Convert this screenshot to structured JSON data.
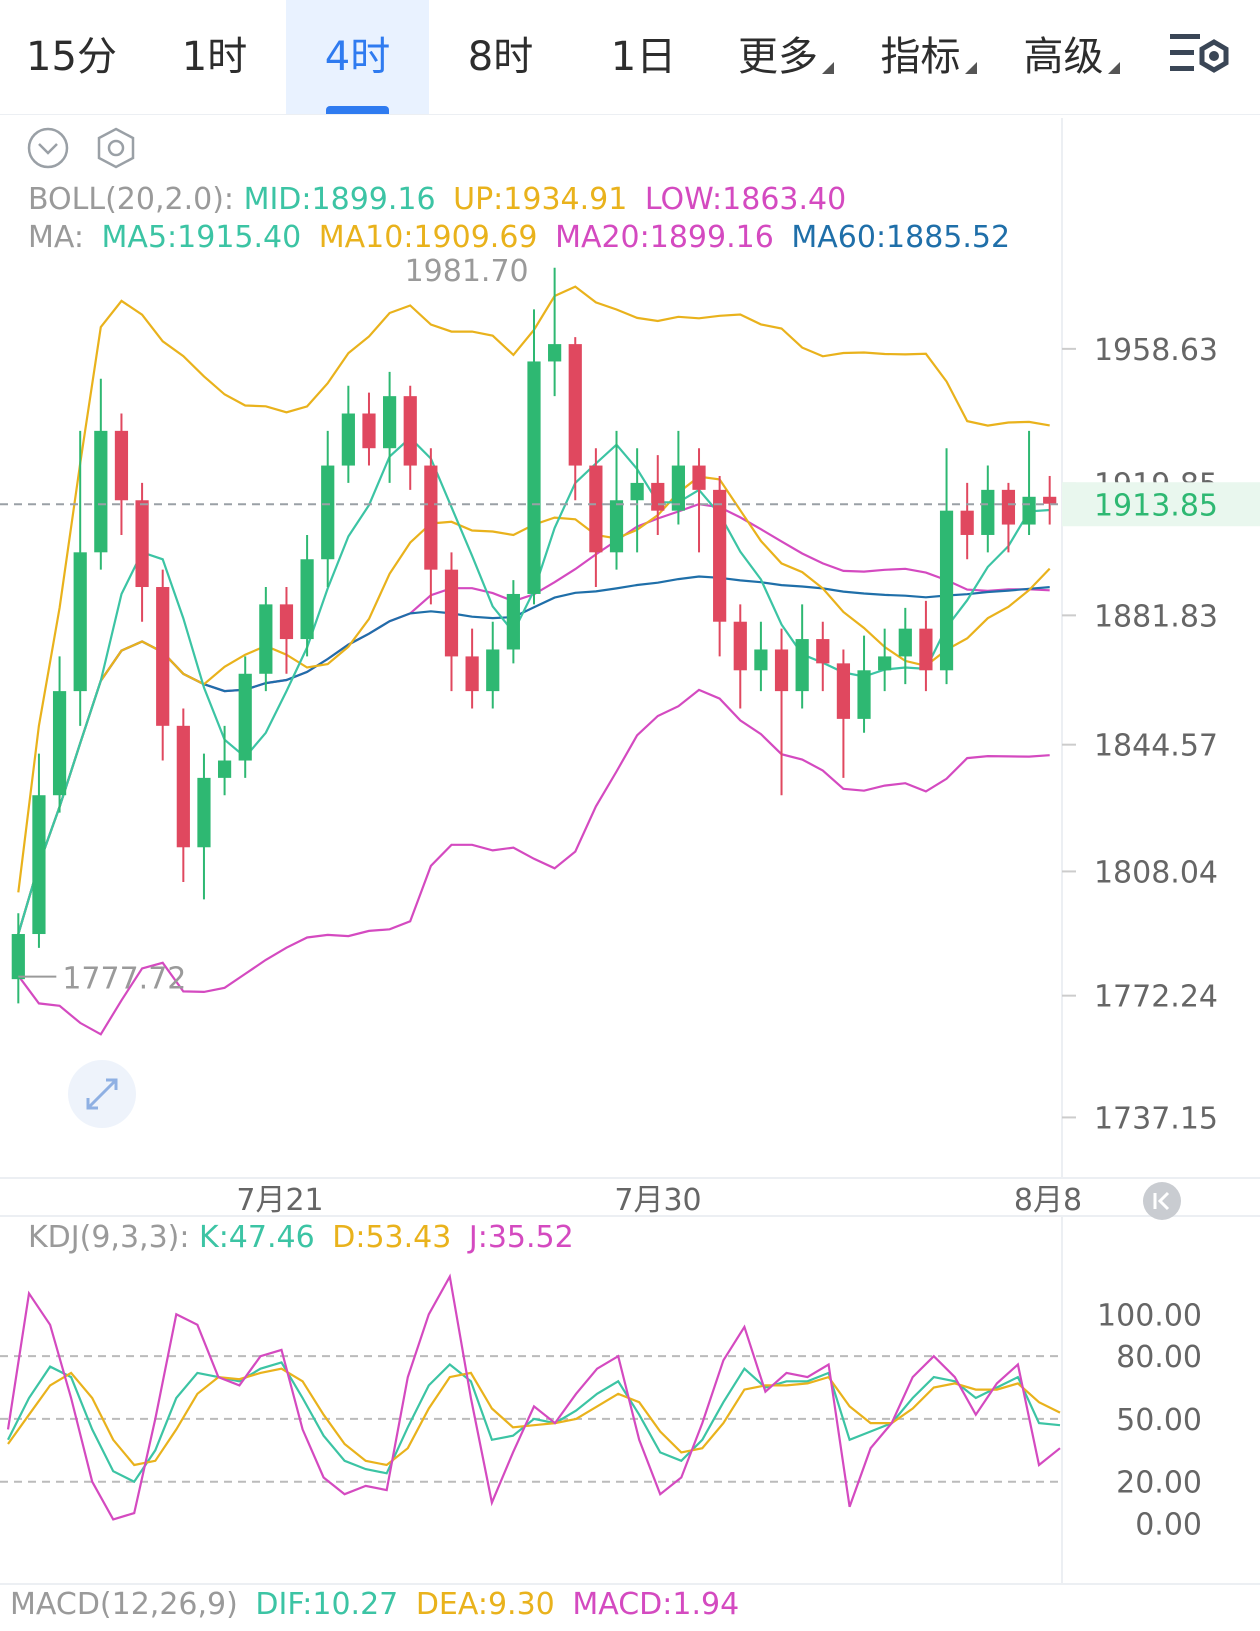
{
  "tabs": [
    {
      "label": "15分",
      "active": false,
      "dropdown": false
    },
    {
      "label": "1时",
      "active": false,
      "dropdown": false
    },
    {
      "label": "4时",
      "active": true,
      "dropdown": false
    },
    {
      "label": "8时",
      "active": false,
      "dropdown": false
    },
    {
      "label": "1日",
      "active": false,
      "dropdown": false
    },
    {
      "label": "更多",
      "active": false,
      "dropdown": true
    },
    {
      "label": "指标",
      "active": false,
      "dropdown": true
    },
    {
      "label": "高级",
      "active": false,
      "dropdown": true
    }
  ],
  "colors": {
    "mid": "#3cc4a4",
    "up": "#e9b21c",
    "low": "#d44ac0",
    "ma60": "#1f6fa9",
    "bull": "#2eb872",
    "bear": "#e0485f",
    "accent": "#2f7bf0"
  },
  "boll": {
    "label": "BOLL(20,2.0):",
    "mid": "MID:1899.16",
    "up": "UP:1934.91",
    "low": "LOW:1863.40"
  },
  "ma": {
    "label": "MA:",
    "ma5": "MA5:1915.40",
    "ma10": "MA10:1909.69",
    "ma20": "MA20:1899.16",
    "ma60": "MA60:1885.52"
  },
  "kdj": {
    "label": "KDJ(9,3,3):",
    "k": "K:47.46",
    "d": "D:53.43",
    "j": "J:35.52"
  },
  "macd": {
    "label": "MACD(12,26,9)",
    "dif": "DIF:10.27",
    "dea": "DEA:9.30",
    "macd": "MACD:1.94"
  },
  "chart_data": [
    {
      "type": "candlestick",
      "price_ticks": [
        "1958.63",
        "1919.85",
        "1881.83",
        "1844.57",
        "1808.04",
        "1772.24",
        "1737.15"
      ],
      "current_price": "1913.85",
      "max_label": "1981.70",
      "min_label": "1777.72",
      "date_labels": [
        "7月21",
        "7月30",
        "8月8"
      ],
      "ylim": [
        1722,
        1990
      ],
      "candles": [
        [
          1777,
          1790,
          1770,
          1796
        ],
        [
          1790,
          1830,
          1786,
          1842
        ],
        [
          1830,
          1860,
          1825,
          1870
        ],
        [
          1860,
          1900,
          1850,
          1935
        ],
        [
          1900,
          1935,
          1895,
          1950
        ],
        [
          1935,
          1915,
          1905,
          1940
        ],
        [
          1915,
          1890,
          1880,
          1920
        ],
        [
          1890,
          1850,
          1840,
          1895
        ],
        [
          1850,
          1815,
          1805,
          1855
        ],
        [
          1815,
          1835,
          1800,
          1842
        ],
        [
          1835,
          1840,
          1830,
          1850
        ],
        [
          1840,
          1865,
          1835,
          1870
        ],
        [
          1865,
          1885,
          1860,
          1890
        ],
        [
          1885,
          1875,
          1865,
          1890
        ],
        [
          1875,
          1898,
          1870,
          1905
        ],
        [
          1898,
          1925,
          1890,
          1935
        ],
        [
          1925,
          1940,
          1920,
          1948
        ],
        [
          1940,
          1930,
          1925,
          1946
        ],
        [
          1930,
          1945,
          1920,
          1952
        ],
        [
          1945,
          1925,
          1918,
          1948
        ],
        [
          1925,
          1895,
          1885,
          1930
        ],
        [
          1895,
          1870,
          1860,
          1900
        ],
        [
          1870,
          1860,
          1855,
          1878
        ],
        [
          1860,
          1872,
          1855,
          1880
        ],
        [
          1872,
          1888,
          1868,
          1892
        ],
        [
          1888,
          1955,
          1885,
          1970
        ],
        [
          1955,
          1960,
          1945,
          1982
        ],
        [
          1960,
          1925,
          1915,
          1962
        ],
        [
          1925,
          1900,
          1890,
          1930
        ],
        [
          1900,
          1915,
          1895,
          1935
        ],
        [
          1915,
          1920,
          1900,
          1930
        ],
        [
          1920,
          1912,
          1905,
          1928
        ],
        [
          1912,
          1925,
          1908,
          1935
        ],
        [
          1925,
          1918,
          1900,
          1930
        ],
        [
          1918,
          1880,
          1870,
          1922
        ],
        [
          1880,
          1866,
          1855,
          1885
        ],
        [
          1866,
          1872,
          1860,
          1880
        ],
        [
          1872,
          1860,
          1830,
          1878
        ],
        [
          1860,
          1875,
          1855,
          1885
        ],
        [
          1875,
          1868,
          1860,
          1880
        ],
        [
          1868,
          1852,
          1835,
          1872
        ],
        [
          1852,
          1866,
          1848,
          1876
        ],
        [
          1866,
          1870,
          1860,
          1878
        ],
        [
          1870,
          1878,
          1862,
          1884
        ],
        [
          1878,
          1866,
          1860,
          1886
        ],
        [
          1866,
          1912,
          1862,
          1930
        ],
        [
          1912,
          1905,
          1898,
          1920
        ],
        [
          1905,
          1918,
          1900,
          1925
        ],
        [
          1918,
          1908,
          1900,
          1920
        ],
        [
          1908,
          1916,
          1905,
          1935
        ],
        [
          1916,
          1914,
          1908,
          1922
        ]
      ]
    },
    {
      "type": "line",
      "title": "KDJ(9,3,3)",
      "yticks": [
        "100.00",
        "80.00",
        "50.00",
        "20.00",
        "0.00"
      ],
      "ylim": [
        -5,
        125
      ],
      "series": [
        {
          "name": "K",
          "values": [
            40,
            60,
            75,
            70,
            45,
            25,
            20,
            35,
            60,
            72,
            70,
            68,
            74,
            77,
            60,
            42,
            30,
            26,
            24,
            46,
            66,
            76,
            68,
            40,
            42,
            50,
            48,
            54,
            62,
            68,
            52,
            34,
            30,
            40,
            58,
            74,
            65,
            68,
            68,
            72,
            40,
            44,
            48,
            60,
            70,
            68,
            60,
            65,
            70,
            48,
            47
          ]
        },
        {
          "name": "D",
          "values": [
            38,
            52,
            66,
            72,
            60,
            40,
            28,
            30,
            45,
            62,
            70,
            69,
            72,
            74,
            68,
            52,
            38,
            30,
            28,
            36,
            55,
            70,
            72,
            55,
            46,
            47,
            48,
            50,
            56,
            62,
            58,
            44,
            34,
            36,
            48,
            64,
            66,
            66,
            67,
            70,
            56,
            48,
            48,
            55,
            65,
            67,
            64,
            64,
            67,
            58,
            53
          ]
        },
        {
          "name": "J",
          "values": [
            45,
            110,
            95,
            60,
            20,
            2,
            5,
            50,
            100,
            95,
            70,
            66,
            80,
            83,
            45,
            22,
            14,
            18,
            16,
            70,
            100,
            118,
            60,
            10,
            34,
            56,
            48,
            62,
            74,
            80,
            40,
            14,
            22,
            48,
            78,
            94,
            63,
            72,
            70,
            76,
            8,
            36,
            48,
            70,
            80,
            70,
            52,
            67,
            76,
            28,
            36
          ]
        }
      ]
    }
  ]
}
